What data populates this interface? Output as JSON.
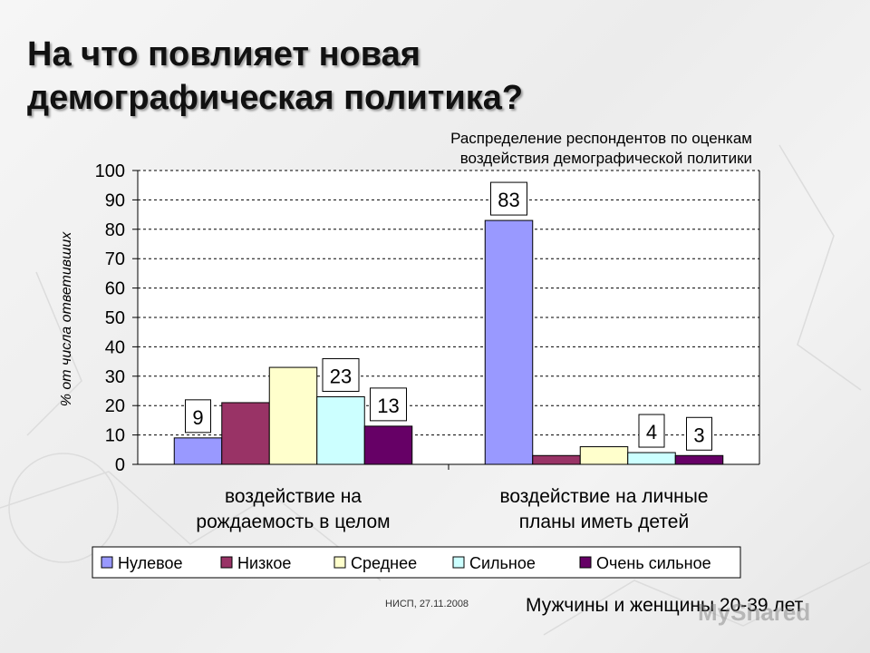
{
  "slide": {
    "title_line1": "На что повлияет новая",
    "title_line2": "демографическая политика?",
    "source": "НИСП, 27.11.2008",
    "caption": "Мужчины и женщины 20-39 лет",
    "watermark": "MyShared"
  },
  "chart_data": {
    "type": "bar",
    "title": "Распределение респондентов по оценкам воздействия демографической политики",
    "title_lines": [
      "Распределение респондентов по оценкам",
      "воздействия демографической политики"
    ],
    "ylabel": "% от числа ответивших",
    "ylim": [
      0,
      100
    ],
    "yticks": [
      0,
      10,
      20,
      30,
      40,
      50,
      60,
      70,
      80,
      90,
      100
    ],
    "grid": true,
    "legend_position": "bottom",
    "categories": [
      {
        "lines": [
          "воздействие на",
          "рождаемость в целом"
        ]
      },
      {
        "lines": [
          "воздействие на личные",
          "планы иметь детей"
        ]
      }
    ],
    "series": [
      {
        "name": "Нулевое",
        "color": "#9999ff",
        "values": [
          9,
          83
        ],
        "labels": [
          "9",
          "83"
        ]
      },
      {
        "name": "Низкое",
        "color": "#993366",
        "values": [
          21,
          3
        ],
        "labels": [
          "",
          ""
        ]
      },
      {
        "name": "Среднее",
        "color": "#ffffcc",
        "values": [
          33,
          6
        ],
        "labels": [
          "",
          ""
        ]
      },
      {
        "name": "Сильное",
        "color": "#ccffff",
        "values": [
          23,
          4
        ],
        "labels": [
          "23",
          "4"
        ]
      },
      {
        "name": "Очень сильное",
        "color": "#660066",
        "values": [
          13,
          3
        ],
        "labels": [
          "13",
          "3"
        ]
      }
    ]
  }
}
